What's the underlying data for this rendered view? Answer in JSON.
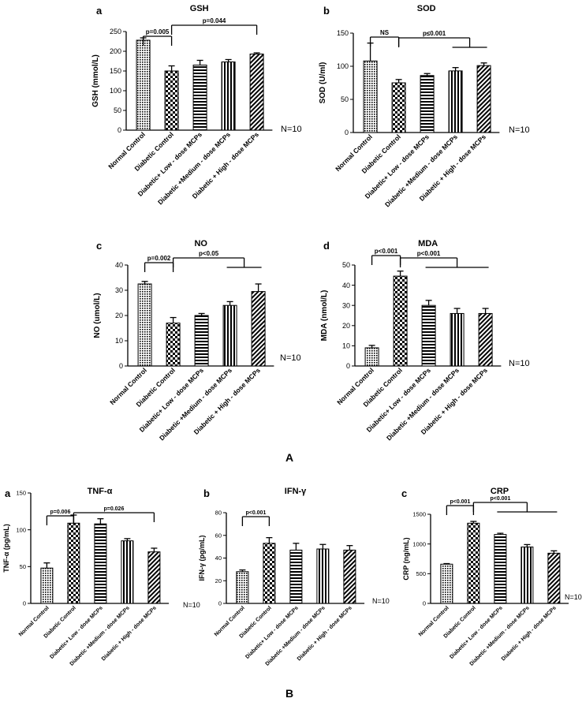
{
  "figure_labels": {
    "A": "A",
    "B": "B"
  },
  "chart_data": [
    {
      "panel": "a",
      "type": "bar",
      "title": "GSH",
      "ylabel": "GSH (mmol/L)",
      "categories": [
        "Normal Control",
        "Diabetic Control",
        "Diabetic+ Low - dose MCPs",
        "Diabetic +Medium - dose MCPs",
        "Diabetic + High - dose MCPs"
      ],
      "values": [
        228,
        150,
        165,
        173,
        193
      ],
      "errors": [
        6,
        13,
        12,
        6,
        3
      ],
      "patterns": [
        "dots",
        "check",
        "hlines",
        "vlines",
        "diag"
      ],
      "ylim": [
        0,
        250
      ],
      "yticks": [
        0,
        50,
        100,
        150,
        200,
        250
      ],
      "n_label": "N=10",
      "annotations": [
        {
          "text": "p=0.005",
          "type": "bracket",
          "from": 0,
          "to": 1
        },
        {
          "text": "p=0.044",
          "type": "bracket",
          "from": 1,
          "to": 4
        }
      ]
    },
    {
      "panel": "b",
      "type": "bar",
      "title": "SOD",
      "ylabel": "SOD (U/ml)",
      "categories": [
        "Normal Control",
        "Diabetic Control",
        "Diabetic+ Low - dose MCPs",
        "Diabetic +Medium - dose MCPs",
        "Diabetic + High - dose MCPs"
      ],
      "values": [
        108,
        75,
        86,
        93,
        101
      ],
      "errors": [
        27,
        5,
        3,
        5,
        4
      ],
      "patterns": [
        "dots",
        "check",
        "hlines",
        "vlines",
        "diag"
      ],
      "ylim": [
        0,
        150
      ],
      "yticks": [
        0,
        50,
        100,
        150
      ],
      "n_label": "N=10",
      "annotations": [
        {
          "text": "NS",
          "type": "bracket",
          "from": 0,
          "to": 1
        },
        {
          "text": "p≤0.001",
          "type": "bracket",
          "from": 1,
          "to": 3.5,
          "tick_to": [
            3,
            4
          ]
        }
      ]
    },
    {
      "panel": "c",
      "type": "bar",
      "title": "NO",
      "ylabel": "NO (umol/L)",
      "categories": [
        "Normal Control",
        "Diabetic Control",
        "Diabetic+ Low - dose MCPs",
        "Diabetic +Medium - dose MCPs",
        "Diabetic + High - dose MCPs"
      ],
      "values": [
        32.5,
        17,
        20,
        24,
        29.5
      ],
      "errors": [
        1,
        2.2,
        0.8,
        1.5,
        3
      ],
      "patterns": [
        "dots",
        "check",
        "hlines",
        "vlines",
        "diag"
      ],
      "ylim": [
        0,
        40
      ],
      "yticks": [
        0,
        10,
        20,
        30,
        40
      ],
      "n_label": "N=10",
      "annotations": [
        {
          "text": "p=0.002",
          "type": "bracket",
          "from": 0,
          "to": 1
        },
        {
          "text": "p<0.05",
          "type": "bracket",
          "from": 1,
          "to": 3.5,
          "tick_to": [
            3,
            4
          ]
        }
      ]
    },
    {
      "panel": "d",
      "type": "bar",
      "title": "MDA",
      "ylabel": "MDA (nmol/L)",
      "categories": [
        "Normal Control",
        "Diabetic Control",
        "Diabetic+ Low - dose MCPs",
        "Diabetic +Medium - dose MCPs",
        "Diabetic + High - dose MCPs"
      ],
      "values": [
        9,
        44.5,
        30,
        26,
        26
      ],
      "errors": [
        1.2,
        2.5,
        2.5,
        2.5,
        2.5
      ],
      "patterns": [
        "dots",
        "check",
        "hlines",
        "vlines",
        "diag"
      ],
      "ylim": [
        0,
        50
      ],
      "yticks": [
        0,
        10,
        20,
        30,
        40,
        50
      ],
      "n_label": "N=10",
      "annotations": [
        {
          "text": "p<0.001",
          "type": "bracket",
          "from": 0,
          "to": 1
        },
        {
          "text": "p<0.001",
          "type": "bracket",
          "from": 1,
          "to": 3,
          "tick_to": [
            2,
            4
          ]
        }
      ]
    },
    {
      "panel": "a",
      "type": "bar",
      "title": "TNF-α",
      "ylabel": "TNF-α (pg/mL)",
      "categories": [
        "Normal Control",
        "Diabetic Control",
        "Diabetic+ Low - dose MCPs",
        "Diabetic +Medium - dose MCPs",
        "Diabetic + High - dose MCPs"
      ],
      "values": [
        48,
        109,
        108,
        85,
        70
      ],
      "errors": [
        7,
        11,
        7,
        3,
        5
      ],
      "patterns": [
        "dots",
        "check",
        "hlines",
        "vlines",
        "diag"
      ],
      "ylim": [
        0,
        150
      ],
      "yticks": [
        0,
        50,
        100,
        150
      ],
      "n_label": "N=10",
      "annotations": [
        {
          "text": "p=0.006",
          "type": "bracket",
          "from": 0,
          "to": 1
        },
        {
          "text": "p=0.026",
          "type": "bracket",
          "from": 1,
          "to": 4
        }
      ]
    },
    {
      "panel": "b",
      "type": "bar",
      "title": "IFN-γ",
      "ylabel": "IFN-γ  (pg/mL)",
      "categories": [
        "Normal Control",
        "Diabetic Control",
        "Diabetic+ Low - dose MCPs",
        "Diabetic +Medium - dose MCPs",
        "Diabetic + High - dose MCPs"
      ],
      "values": [
        28,
        53,
        47,
        48,
        47
      ],
      "errors": [
        1.5,
        5,
        6,
        4,
        4
      ],
      "patterns": [
        "dots",
        "check",
        "hlines",
        "vlines",
        "diag"
      ],
      "ylim": [
        0,
        80
      ],
      "yticks": [
        0,
        20,
        40,
        60,
        80
      ],
      "n_label": "N=10",
      "annotations": [
        {
          "text": "p<0.001",
          "type": "bracket",
          "from": 0,
          "to": 1
        }
      ]
    },
    {
      "panel": "c",
      "type": "bar",
      "title": "CRP",
      "ylabel": "CRP (ng/mL)",
      "categories": [
        "Normal Control",
        "Diabetic Control",
        "Diabetic+ Low - dose MCPs",
        "Diabetic +Medium - dose MCPs",
        "Diabetic + High - dose MCPs"
      ],
      "values": [
        660,
        1350,
        1160,
        950,
        845
      ],
      "errors": [
        10,
        30,
        20,
        40,
        40
      ],
      "patterns": [
        "dots",
        "check",
        "hlines",
        "vlines",
        "diag"
      ],
      "ylim": [
        0,
        1500
      ],
      "yticks": [
        0,
        500,
        1000,
        1500
      ],
      "n_label": "N=10",
      "annotations": [
        {
          "text": "p<0.001",
          "type": "bracket",
          "from": 0,
          "to": 1
        },
        {
          "text": "p<0.001",
          "type": "bracket",
          "from": 1,
          "to": 3,
          "tick_to": [
            2,
            4
          ]
        }
      ]
    }
  ]
}
